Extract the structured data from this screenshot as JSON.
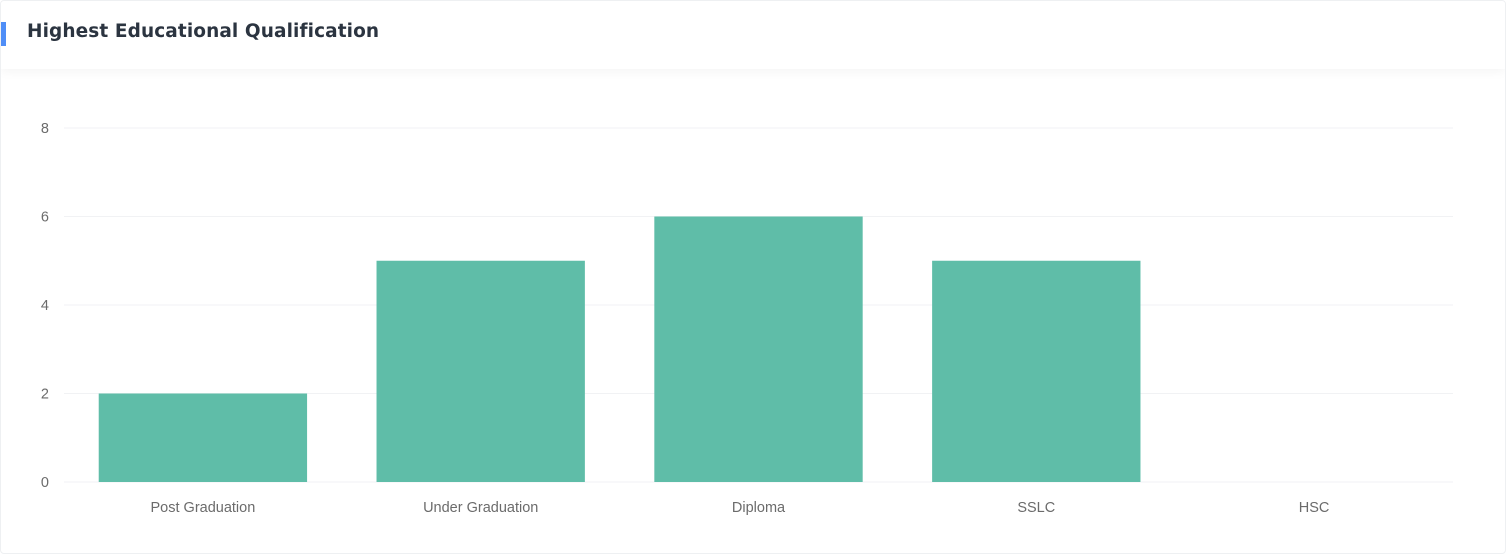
{
  "header": {
    "title": "Highest Educational Qualification",
    "accent_color": "#4f8ef7"
  },
  "chart_data": {
    "type": "bar",
    "categories": [
      "Post Graduation",
      "Under Graduation",
      "Diploma",
      "SSLC",
      "HSC"
    ],
    "values": [
      2,
      5,
      6,
      5,
      0
    ],
    "yticks": [
      "0",
      "2",
      "4",
      "6",
      "8"
    ],
    "ylim": [
      0,
      8
    ],
    "grid": true,
    "bar_color": "#5fbda8",
    "grid_color": "#f1f2f4"
  }
}
